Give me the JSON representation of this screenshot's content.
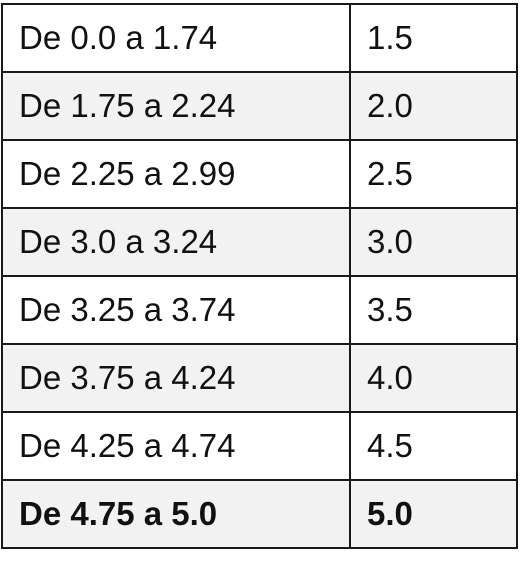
{
  "table": {
    "rows": [
      {
        "range": "De 0.0 a 1.74",
        "grade": "1.5",
        "shaded": false,
        "bold": false
      },
      {
        "range": "De 1.75 a 2.24",
        "grade": "2.0",
        "shaded": true,
        "bold": false
      },
      {
        "range": "De 2.25 a 2.99",
        "grade": "2.5",
        "shaded": false,
        "bold": false
      },
      {
        "range": "De 3.0 a 3.24",
        "grade": "3.0",
        "shaded": true,
        "bold": false
      },
      {
        "range": "De 3.25 a 3.74",
        "grade": "3.5",
        "shaded": false,
        "bold": false
      },
      {
        "range": "De 3.75 a 4.24",
        "grade": "4.0",
        "shaded": true,
        "bold": false
      },
      {
        "range": "De 4.25 a 4.74",
        "grade": "4.5",
        "shaded": false,
        "bold": false
      },
      {
        "range": "De 4.75 a 5.0",
        "grade": "5.0",
        "shaded": true,
        "bold": true
      }
    ],
    "colors": {
      "shaded_row": "#f2f2f2",
      "border": "#1a1a1a",
      "text": "#111111"
    }
  }
}
